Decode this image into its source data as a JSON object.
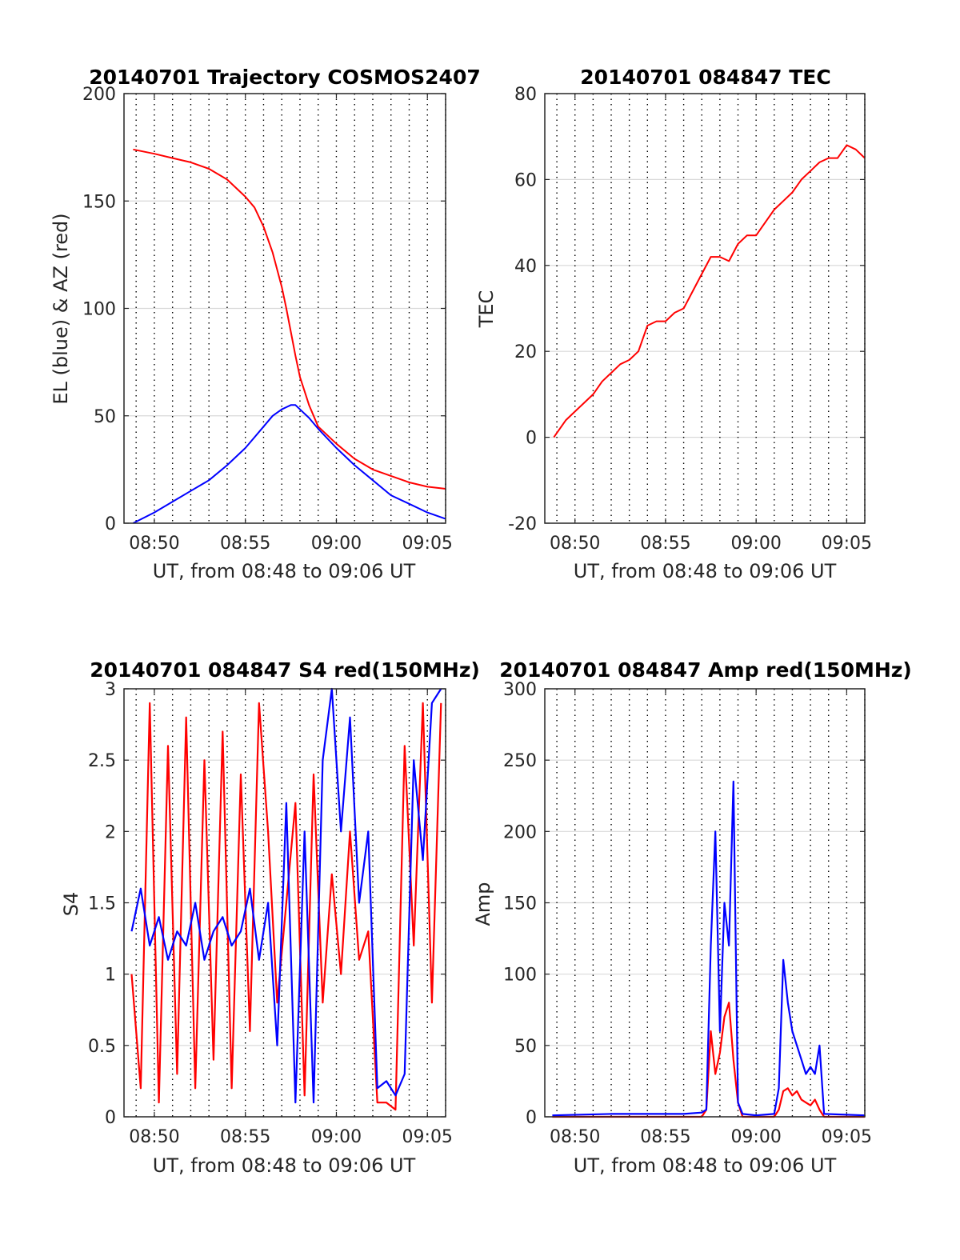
{
  "figure": {
    "background": "#ffffff",
    "axis_color": "#262626",
    "grid_color": "#d9d9d9",
    "vgrid_color": "#000000",
    "red": "#ff0000",
    "blue": "#0000ff"
  },
  "chart_data": [
    {
      "type": "line",
      "title": "20140701 Trajectory COSMOS2407",
      "xlabel": "UT, from 08:48 to 09:06 UT",
      "ylabel": "EL (blue) & AZ (red)",
      "xlim": [
        "08:48:20",
        "09:06:00"
      ],
      "ylim": [
        0,
        200
      ],
      "x_ticks": [
        "08:50",
        "08:55",
        "09:00",
        "09:05"
      ],
      "y_ticks": [
        "0",
        "50",
        "100",
        "150",
        "200"
      ],
      "grid": "horizontal major gridlines, dotted vertical lines every minute",
      "x_time": [
        "08:48:50",
        "08:50",
        "08:51",
        "08:52",
        "08:53",
        "08:54",
        "08:55",
        "08:55:30",
        "08:56",
        "08:56:30",
        "08:57",
        "08:57:15",
        "08:57:30",
        "08:57:45",
        "08:58",
        "08:58:30",
        "08:59",
        "09:00",
        "09:01",
        "09:02",
        "09:03",
        "09:04",
        "09:05",
        "09:06"
      ],
      "series": [
        {
          "color": "#ff0000",
          "values": [
            174,
            172,
            170,
            168,
            165,
            160,
            152,
            147,
            138,
            126,
            110,
            100,
            89,
            78,
            68,
            55,
            45,
            37,
            30,
            25,
            22,
            19,
            17,
            16
          ]
        },
        {
          "color": "#0000ff",
          "values": [
            0,
            5,
            10,
            15,
            20,
            27,
            35,
            40,
            45,
            50,
            53,
            54,
            55,
            55,
            53,
            49,
            44,
            35,
            27,
            20,
            13,
            9,
            5,
            2
          ]
        }
      ]
    },
    {
      "type": "line",
      "title": "20140701 084847 TEC",
      "xlabel": "UT, from 08:48 to 09:06 UT",
      "ylabel": "TEC",
      "xlim": [
        "08:48:20",
        "09:06:00"
      ],
      "ylim": [
        -20,
        80
      ],
      "x_ticks": [
        "08:50",
        "08:55",
        "09:00",
        "09:05"
      ],
      "y_ticks": [
        "-20",
        "0",
        "20",
        "40",
        "60",
        "80"
      ],
      "grid": "horizontal major gridlines, dotted vertical lines every minute",
      "x_time": [
        "08:48:50",
        "08:49:30",
        "08:50",
        "08:50:30",
        "08:51",
        "08:51:30",
        "08:52",
        "08:52:30",
        "08:53",
        "08:53:30",
        "08:54",
        "08:54:30",
        "08:55",
        "08:55:30",
        "08:56",
        "08:56:30",
        "08:57",
        "08:57:30",
        "08:58",
        "08:58:30",
        "08:59",
        "08:59:30",
        "09:00",
        "09:00:30",
        "09:01",
        "09:01:30",
        "09:02",
        "09:02:30",
        "09:03",
        "09:03:30",
        "09:04",
        "09:04:30",
        "09:05",
        "09:05:30",
        "09:06"
      ],
      "series": [
        {
          "color": "#ff0000",
          "values": [
            0,
            4,
            6,
            8,
            10,
            13,
            15,
            17,
            18,
            20,
            26,
            27,
            27,
            29,
            30,
            34,
            38,
            42,
            42,
            41,
            45,
            47,
            47,
            50,
            53,
            55,
            57,
            60,
            62,
            64,
            65,
            65,
            68,
            67,
            65
          ]
        }
      ]
    },
    {
      "type": "line",
      "title": "20140701 084847 S4 red(150MHz)",
      "xlabel": "UT, from 08:48 to 09:06 UT",
      "ylabel": "S4",
      "xlim": [
        "08:48:20",
        "09:06:00"
      ],
      "ylim": [
        0,
        3
      ],
      "x_ticks": [
        "08:50",
        "08:55",
        "09:00",
        "09:05"
      ],
      "y_ticks": [
        "0",
        "0.5",
        "1",
        "1.5",
        "2",
        "2.5",
        "3"
      ],
      "grid": "horizontal major gridlines, dotted vertical lines every minute",
      "x_time": [
        "08:48:45",
        "08:49:15",
        "08:49:45",
        "08:50:15",
        "08:50:45",
        "08:51:15",
        "08:51:45",
        "08:52:15",
        "08:52:45",
        "08:53:15",
        "08:53:45",
        "08:54:15",
        "08:54:45",
        "08:55:15",
        "08:55:45",
        "08:56:15",
        "08:56:45",
        "08:57:15",
        "08:57:45",
        "08:58:15",
        "08:58:45",
        "08:59:15",
        "08:59:45",
        "09:00:15",
        "09:00:45",
        "09:01:15",
        "09:01:45",
        "09:02:15",
        "09:02:45",
        "09:03:15",
        "09:03:45",
        "09:04:15",
        "09:04:45",
        "09:05:15",
        "09:05:45"
      ],
      "series": [
        {
          "color": "#ff0000",
          "values": [
            1.0,
            0.2,
            2.9,
            0.1,
            2.6,
            0.3,
            2.8,
            0.2,
            2.5,
            0.4,
            2.7,
            0.2,
            2.4,
            0.6,
            2.9,
            2.0,
            0.8,
            1.5,
            2.2,
            0.15,
            2.4,
            0.8,
            1.7,
            1.0,
            2.0,
            1.1,
            1.3,
            0.1,
            0.1,
            0.05,
            2.6,
            1.2,
            2.9,
            0.8,
            2.9
          ]
        },
        {
          "color": "#0000ff",
          "values": [
            1.3,
            1.6,
            1.2,
            1.4,
            1.1,
            1.3,
            1.2,
            1.5,
            1.1,
            1.3,
            1.4,
            1.2,
            1.3,
            1.6,
            1.1,
            1.5,
            0.5,
            2.2,
            0.1,
            2.0,
            0.1,
            2.5,
            3.0,
            2.0,
            2.8,
            1.5,
            2.0,
            0.2,
            0.25,
            0.15,
            0.3,
            2.5,
            1.8,
            2.9,
            3.0
          ]
        }
      ]
    },
    {
      "type": "line",
      "title": "20140701 084847 Amp red(150MHz)",
      "xlabel": "UT, from 08:48 to 09:06 UT",
      "ylabel": "Amp",
      "xlim": [
        "08:48:20",
        "09:06:00"
      ],
      "ylim": [
        0,
        300
      ],
      "x_ticks": [
        "08:50",
        "08:55",
        "09:00",
        "09:05"
      ],
      "y_ticks": [
        "0",
        "50",
        "100",
        "150",
        "200",
        "250",
        "300"
      ],
      "grid": "horizontal major gridlines, dotted vertical lines every minute",
      "x_time": [
        "08:48:45",
        "08:52:00",
        "08:56:00",
        "08:57:00",
        "08:57:15",
        "08:57:30",
        "08:57:45",
        "08:58:00",
        "08:58:15",
        "08:58:30",
        "08:58:45",
        "08:59:00",
        "08:59:15",
        "09:00:00",
        "09:01:00",
        "09:01:15",
        "09:01:30",
        "09:01:45",
        "09:02:00",
        "09:02:15",
        "09:02:30",
        "09:02:45",
        "09:03:00",
        "09:03:15",
        "09:03:30",
        "09:03:45",
        "09:06:00"
      ],
      "series": [
        {
          "color": "#ff0000",
          "values": [
            0,
            0,
            0,
            0,
            5,
            60,
            30,
            45,
            70,
            80,
            40,
            10,
            0,
            0,
            0,
            5,
            18,
            20,
            15,
            18,
            12,
            10,
            8,
            12,
            5,
            0,
            0
          ]
        },
        {
          "color": "#0000ff",
          "values": [
            1,
            2,
            2,
            3,
            5,
            120,
            200,
            60,
            150,
            120,
            235,
            10,
            2,
            1,
            2,
            20,
            110,
            80,
            60,
            50,
            40,
            30,
            35,
            30,
            50,
            2,
            1
          ]
        }
      ]
    }
  ]
}
